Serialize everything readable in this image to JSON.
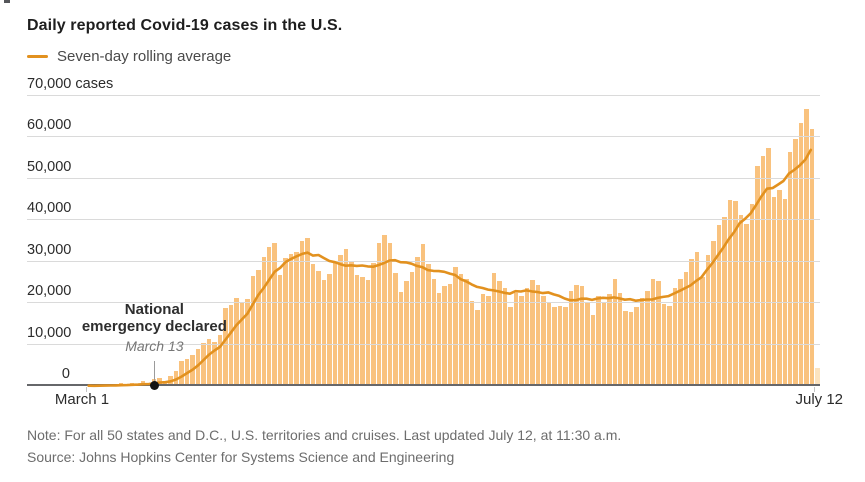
{
  "title": "Daily reported Covid-19 cases in the U.S.",
  "legend": {
    "label": "Seven-day rolling average"
  },
  "y_axis": {
    "ticks": [
      {
        "label": "70,000 cases",
        "value": 70000
      },
      {
        "label": "60,000",
        "value": 60000
      },
      {
        "label": "50,000",
        "value": 50000
      },
      {
        "label": "40,000",
        "value": 40000
      },
      {
        "label": "30,000",
        "value": 30000
      },
      {
        "label": "20,000",
        "value": 20000
      },
      {
        "label": "10,000",
        "value": 10000
      },
      {
        "label": "0",
        "value": 0
      }
    ]
  },
  "x_axis": {
    "first_label": "March 1",
    "last_label": "July 12"
  },
  "annotation": {
    "title_line1": "National",
    "title_line2": "emergency declared",
    "date_label": "March 13",
    "day_index": 12
  },
  "footer": {
    "note": "Note: For all 50 states and D.C., U.S. territories and cruises. Last updated July 12, at 11:30 a.m.",
    "source": "Source: Johns Hopkins Center for Systems Science and Engineering"
  },
  "colors": {
    "bar": "#F9C27E",
    "bar_partial_day": "#FCE3BF",
    "rolling_average_line": "#E2911F",
    "gridline": "#DADADA",
    "axis": "#66676A",
    "annotation_dot": "#141414"
  },
  "chart_data": {
    "type": "bar",
    "overlay": "seven-day rolling average line",
    "title": "Daily reported Covid-19 cases in the U.S.",
    "unit": "cases",
    "x_first": "March 1",
    "x_last": "July 12",
    "n_days": 134,
    "ylim": [
      0,
      70000
    ],
    "y_tick_interval": 10000,
    "grid": true,
    "legend_position": "top-left",
    "rolling_window": 7,
    "last_bar_partial_day": true,
    "average_excludes_last_partial_day": true,
    "values": [
      70,
      20,
      100,
      160,
      220,
      300,
      410,
      320,
      600,
      310,
      900,
      600,
      1400,
      1600,
      1000,
      2200,
      3400,
      5900,
      6400,
      7200,
      8800,
      10100,
      11200,
      10400,
      12000,
      18700,
      19400,
      20900,
      19900,
      20800,
      26400,
      27700,
      30800,
      33300,
      34200,
      26500,
      30600,
      31700,
      32100,
      34800,
      35500,
      29100,
      27600,
      25300,
      26800,
      30000,
      31500,
      32900,
      29900,
      26500,
      26000,
      25300,
      29500,
      34400,
      36200,
      34200,
      27000,
      22500,
      25000,
      27300,
      30800,
      34000,
      29300,
      25500,
      22300,
      23800,
      24300,
      28400,
      26900,
      25600,
      20300,
      18100,
      22000,
      21500,
      27100,
      25100,
      23300,
      18900,
      22300,
      21500,
      23300,
      25400,
      24100,
      21500,
      20000,
      18900,
      19000,
      18900,
      22600,
      24100,
      24000,
      20000,
      16800,
      21500,
      20000,
      21900,
      25500,
      22300,
      17900,
      17600,
      18900,
      21100,
      22800,
      25600,
      25000,
      19500,
      19000,
      23300,
      25500,
      27300,
      30400,
      32200,
      26000,
      31400,
      34700,
      38600,
      40500,
      44700,
      44300,
      41100,
      38800,
      43600,
      52900,
      55400,
      57200,
      45300,
      47100,
      44800,
      56200,
      59300,
      63200,
      66600,
      61700,
      4200
    ]
  }
}
